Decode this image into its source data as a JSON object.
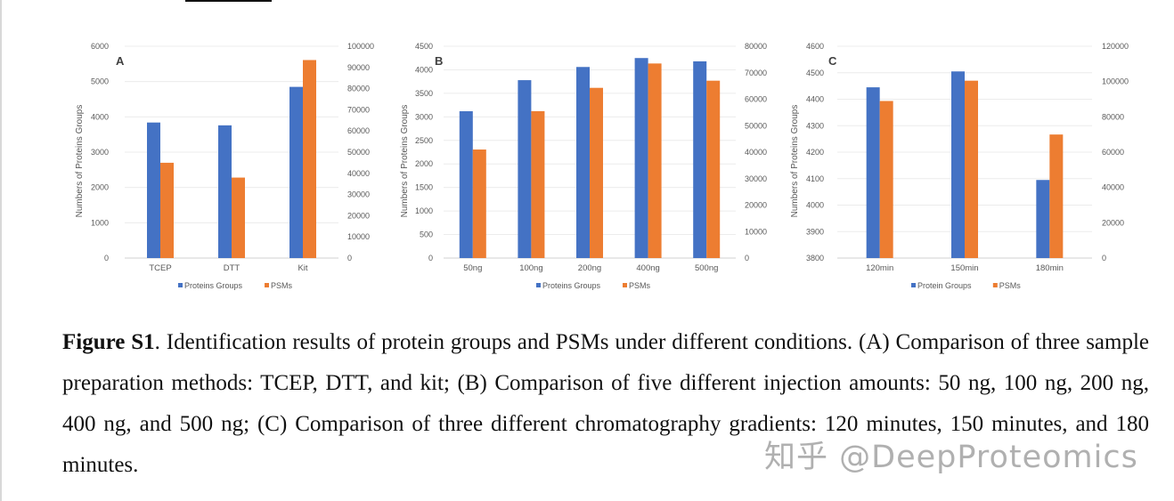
{
  "chart_data": [
    {
      "type": "bar",
      "panel": "A",
      "categories": [
        "TCEP",
        "DTT",
        "Kit"
      ],
      "ylabel": "Numbers of Proteins Groups",
      "ylim": [
        0,
        6000
      ],
      "yticks": [
        0,
        1000,
        2000,
        3000,
        4000,
        5000,
        6000
      ],
      "y2lim": [
        0,
        100000
      ],
      "y2ticks": [
        0,
        10000,
        20000,
        30000,
        40000,
        50000,
        60000,
        70000,
        80000,
        90000,
        100000
      ],
      "grid": true,
      "legend": "bottom",
      "series": [
        {
          "name": "Proteins Groups",
          "axis": "left",
          "color": "#4472C4",
          "values": [
            3840,
            3760,
            4850
          ]
        },
        {
          "name": "PSMs",
          "axis": "right",
          "color": "#ED7D31",
          "values": [
            45000,
            38000,
            93500
          ]
        }
      ]
    },
    {
      "type": "bar",
      "panel": "B",
      "categories": [
        "50ng",
        "100ng",
        "200ng",
        "400ng",
        "500ng"
      ],
      "ylabel": "Numbers of Proteins Groups",
      "ylim": [
        0,
        4500
      ],
      "yticks": [
        0,
        500,
        1000,
        1500,
        2000,
        2500,
        3000,
        3500,
        4000,
        4500
      ],
      "y2lim": [
        0,
        80000
      ],
      "y2ticks": [
        0,
        10000,
        20000,
        30000,
        40000,
        50000,
        60000,
        70000,
        80000
      ],
      "grid": true,
      "legend": "bottom",
      "series": [
        {
          "name": "Proteins Groups",
          "axis": "left",
          "color": "#4472C4",
          "values": [
            3120,
            3780,
            4060,
            4250,
            4180
          ]
        },
        {
          "name": "PSMs",
          "axis": "right",
          "color": "#ED7D31",
          "values": [
            41000,
            55500,
            64300,
            73500,
            67000
          ]
        }
      ]
    },
    {
      "type": "bar",
      "panel": "C",
      "categories": [
        "120min",
        "150min",
        "180min"
      ],
      "ylabel": "Numbers of Proteins Groups",
      "ylim": [
        3800,
        4600
      ],
      "yticks": [
        3800,
        3900,
        4000,
        4100,
        4200,
        4300,
        4400,
        4500,
        4600
      ],
      "y2lim": [
        0,
        120000
      ],
      "y2ticks": [
        0,
        20000,
        40000,
        60000,
        80000,
        100000,
        120000
      ],
      "grid": true,
      "legend": "bottom",
      "series": [
        {
          "name": "Protein Groups",
          "axis": "left",
          "color": "#4472C4",
          "values": [
            4445,
            4505,
            4095
          ]
        },
        {
          "name": "PSMs",
          "axis": "right",
          "color": "#ED7D31",
          "values": [
            89000,
            100500,
            70000
          ]
        }
      ]
    }
  ],
  "caption": {
    "label": "Figure S1",
    "text": ". Identification results of protein groups and PSMs under different conditions. (A) Comparison of three sample preparation methods: TCEP, DTT, and kit; (B) Comparison of five different injection amounts: 50 ng, 100 ng, 200 ng, 400 ng, and 500 ng; (C) Comparison of three different chromatography gradients: 120 minutes, 150 minutes, and 180 minutes."
  },
  "watermark": "知乎 @DeepProteomics"
}
